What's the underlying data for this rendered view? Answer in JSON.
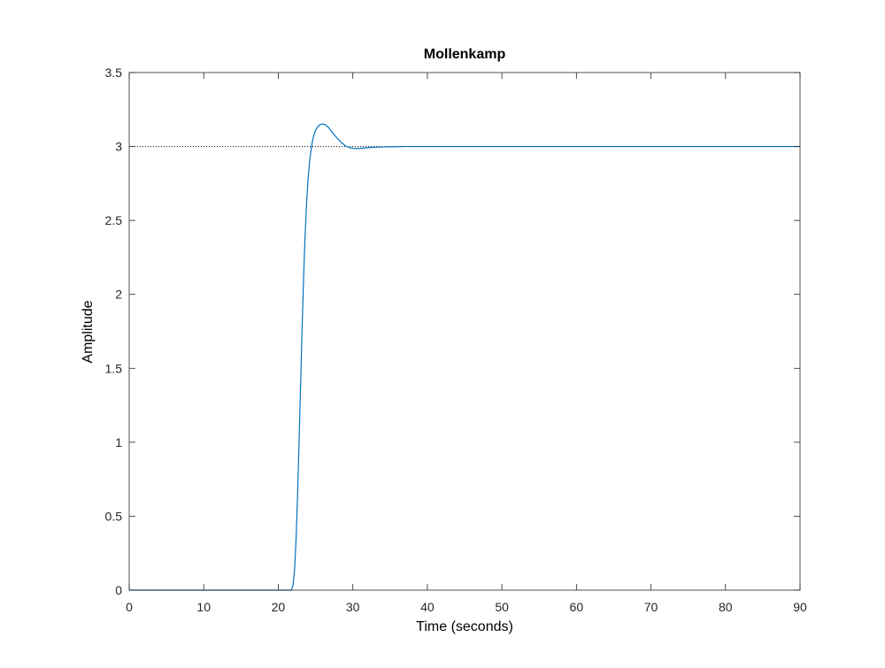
{
  "chart_data": {
    "type": "line",
    "title": "Mollenkamp",
    "xlabel": "Time (seconds)",
    "ylabel": "Amplitude",
    "xlim": [
      0,
      90
    ],
    "ylim": [
      0,
      3.5
    ],
    "xticks": [
      0,
      10,
      20,
      30,
      40,
      50,
      60,
      70,
      80,
      90
    ],
    "xtick_labels": [
      "0",
      "10",
      "20",
      "30",
      "40",
      "50",
      "60",
      "70",
      "80",
      "90"
    ],
    "yticks": [
      0,
      0.5,
      1,
      1.5,
      2,
      2.5,
      3,
      3.5
    ],
    "ytick_labels": [
      "0",
      "0.5",
      "1",
      "1.5",
      "2",
      "2.5",
      "3",
      "3.5"
    ],
    "grid": false,
    "reference_line": {
      "y": 3.0,
      "style": "dotted",
      "color": "#000000"
    },
    "series": [
      {
        "color": "#0072BD",
        "x": [
          0,
          21.6,
          21.8,
          22.0,
          22.2,
          22.4,
          22.6,
          22.8,
          23.0,
          23.2,
          23.4,
          23.6,
          23.8,
          24.0,
          24.2,
          24.4,
          24.6,
          24.8,
          25.0,
          25.3,
          25.6,
          25.9,
          26.2,
          26.5,
          26.8,
          27.1,
          27.5,
          28.0,
          28.5,
          29.0,
          29.5,
          30.0,
          30.5,
          31.0,
          31.5,
          32.0,
          33.0,
          34.0,
          35.0,
          36.0,
          37.0,
          38.0,
          40.0,
          45.0,
          50.0,
          60.0,
          70.0,
          80.0,
          90.0
        ],
        "y": [
          0,
          0,
          0.003,
          0.04,
          0.15,
          0.36,
          0.66,
          1.02,
          1.4,
          1.78,
          2.12,
          2.4,
          2.62,
          2.78,
          2.9,
          2.98,
          3.04,
          3.08,
          3.11,
          3.135,
          3.148,
          3.152,
          3.15,
          3.14,
          3.125,
          3.105,
          3.08,
          3.05,
          3.025,
          3.005,
          2.993,
          2.988,
          2.986,
          2.987,
          2.99,
          2.992,
          2.995,
          2.997,
          2.998,
          2.999,
          3.0,
          3.0,
          3.0,
          3.0,
          3.0,
          3.0,
          3.0,
          3.0,
          3.0
        ]
      }
    ]
  }
}
